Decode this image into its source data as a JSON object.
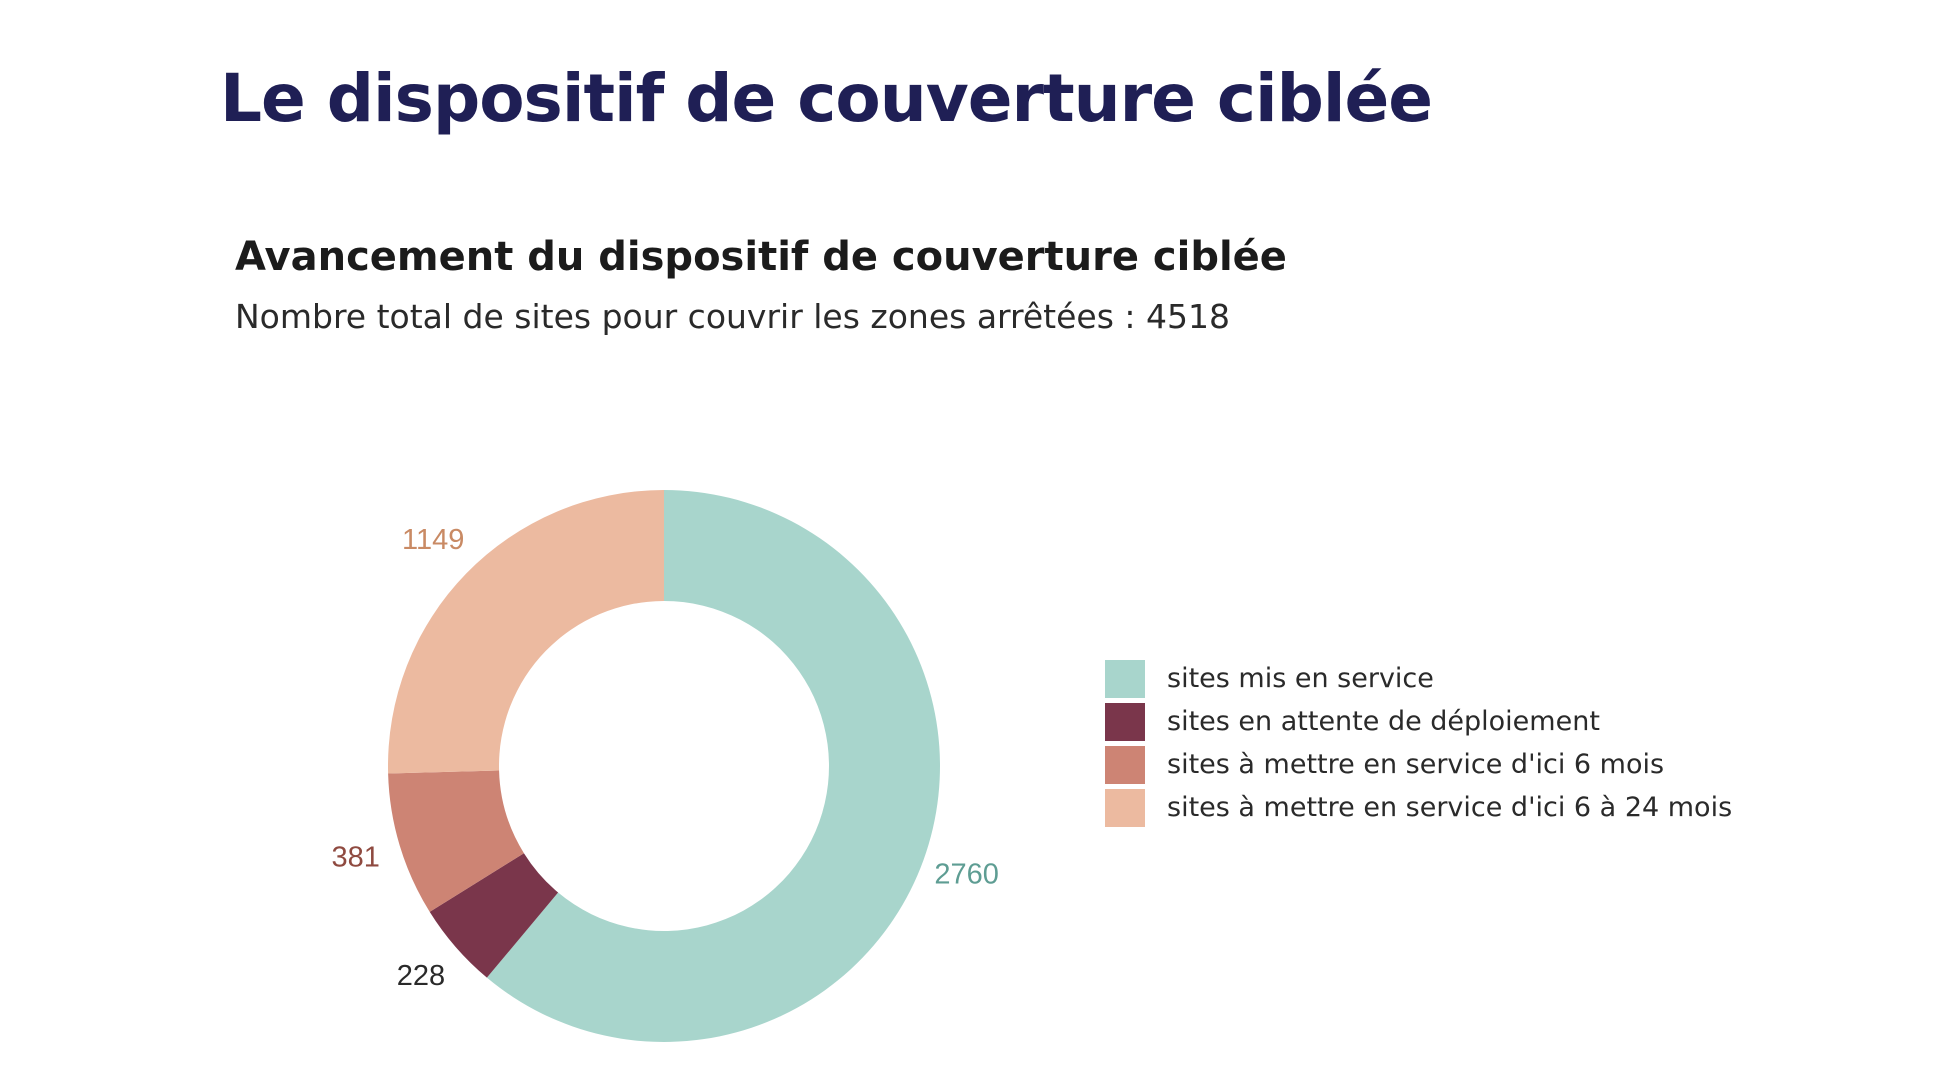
{
  "slide": {
    "title": "Le dispositif de couverture ciblée"
  },
  "chart_data": {
    "type": "pie",
    "variant": "donut",
    "title": "Avancement du dispositif de couverture ciblée",
    "subtitle": "Nombre total de sites pour couvrir les zones arrêtées : 4518",
    "legend_position": "right",
    "slices": [
      {
        "label": "sites mis en service",
        "value": 2760,
        "value_label": "2760",
        "color": "#a8d5cc",
        "label_color": "#5e9d93"
      },
      {
        "label": "sites en attente de déploiement",
        "value": 228,
        "value_label": "228",
        "color": "#7a364b",
        "label_color": "#2a2a2a"
      },
      {
        "label": "sites à mettre en service d'ici 6 mois",
        "value": 381,
        "value_label": "381",
        "color": "#cd8474",
        "label_color": "#8f4a40"
      },
      {
        "label": "sites à mettre en service d'ici 6 à 24 mois",
        "value": 1149,
        "value_label": "1149",
        "color": "#ecbaa0",
        "label_color": "#c98a64"
      }
    ]
  }
}
